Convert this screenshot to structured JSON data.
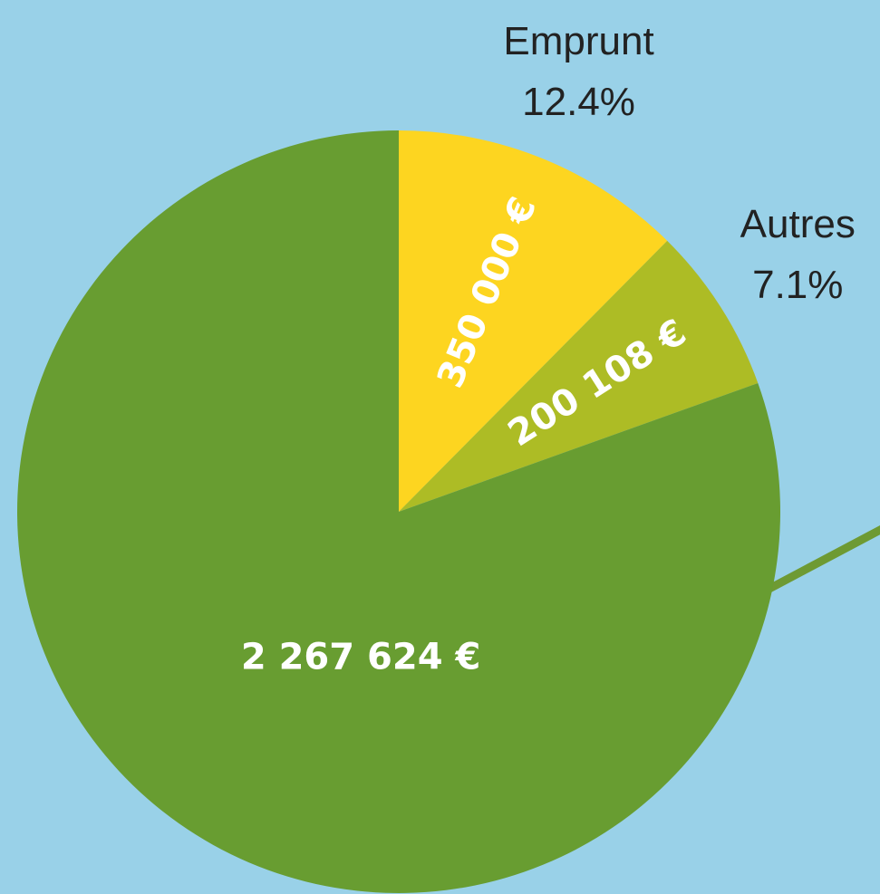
{
  "chart_data": {
    "type": "pie",
    "categories": [
      "Emprunt",
      "Autres",
      null
    ],
    "values": [
      350000,
      200108,
      2267624
    ],
    "value_labels": [
      "350 000 €",
      "200 108 €",
      "2 267 624 €"
    ],
    "percent_labels": [
      "12.4%",
      "7.1%",
      null
    ],
    "colors": [
      "#fdd520",
      "#adbc25",
      "#689d31"
    ]
  }
}
